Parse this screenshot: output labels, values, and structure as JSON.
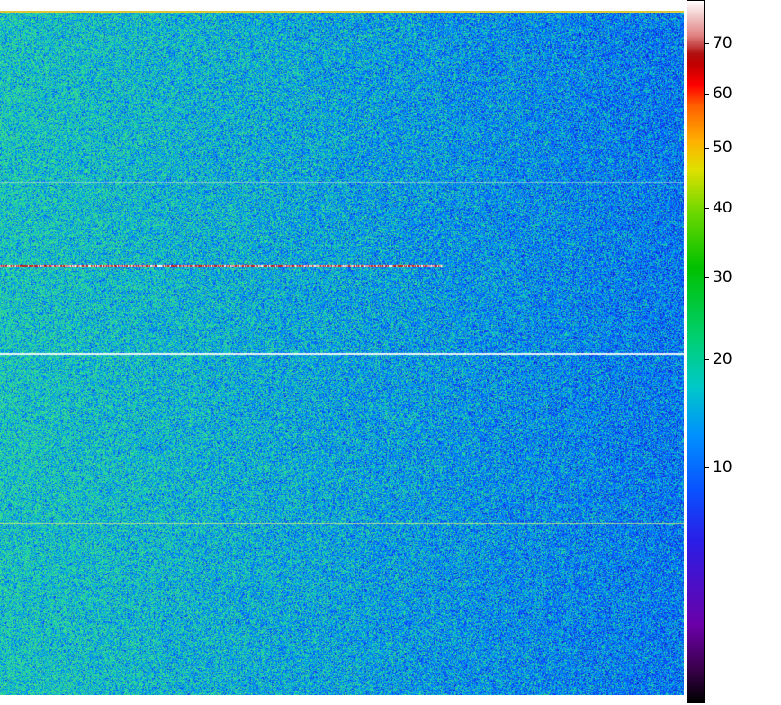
{
  "image": {
    "description_colors": {
      "background_mid": "#1f6fe8",
      "background_dark": "#1030d8",
      "speckle_cyan": "#14c8c0",
      "hot_row": "#c03030"
    }
  },
  "colorbar": {
    "colormap": "spectral",
    "scale": "log",
    "tick_labels": [
      "70",
      "60",
      "50",
      "40",
      "30",
      "20",
      "10"
    ],
    "tick_values": [
      70,
      60,
      50,
      40,
      30,
      20,
      10
    ]
  }
}
